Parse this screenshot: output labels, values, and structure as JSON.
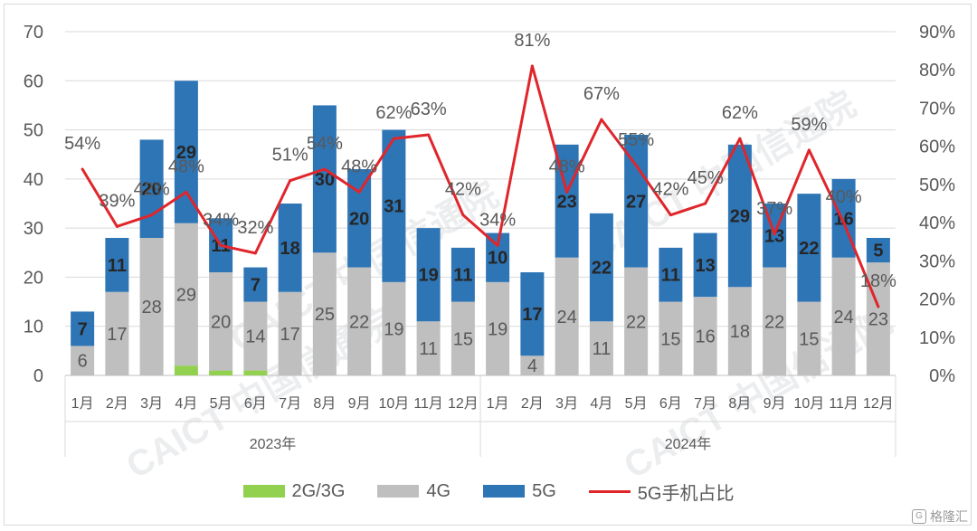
{
  "chart_data": {
    "type": "bar",
    "stacked": true,
    "categories": [
      "1月",
      "2月",
      "3月",
      "4月",
      "5月",
      "6月",
      "7月",
      "8月",
      "9月",
      "10月",
      "11月",
      "12月",
      "1月",
      "2月",
      "3月",
      "4月",
      "5月",
      "6月",
      "7月",
      "8月",
      "9月",
      "10月",
      "11月",
      "12月"
    ],
    "groups": [
      {
        "label": "2023年",
        "count": 12
      },
      {
        "label": "2024年",
        "count": 12
      }
    ],
    "series": [
      {
        "name": "2G/3G",
        "color": "#92d050",
        "values": [
          0,
          0,
          0,
          2,
          1,
          1,
          0,
          0,
          0,
          0,
          0,
          0,
          0,
          0,
          0,
          0,
          0,
          0,
          0,
          0,
          0,
          0,
          0,
          0
        ]
      },
      {
        "name": "4G",
        "color": "#bfbfbf",
        "values": [
          6,
          17,
          28,
          29,
          20,
          14,
          17,
          25,
          22,
          19,
          11,
          15,
          19,
          4,
          24,
          11,
          22,
          15,
          16,
          18,
          22,
          15,
          24,
          23
        ]
      },
      {
        "name": "5G",
        "color": "#2e75b6",
        "values": [
          7,
          11,
          20,
          29,
          11,
          7,
          18,
          30,
          20,
          31,
          19,
          11,
          10,
          17,
          23,
          22,
          27,
          11,
          13,
          29,
          13,
          22,
          16,
          5
        ]
      }
    ],
    "line": {
      "name": "5G手机占比",
      "color": "#e0252b",
      "values": [
        54,
        39,
        42,
        48,
        34,
        32,
        51,
        54,
        48,
        62,
        63,
        42,
        34,
        81,
        48,
        67,
        55,
        42,
        45,
        62,
        37,
        59,
        40,
        18
      ],
      "labels": [
        "54%",
        "39%",
        "42%",
        "48%",
        "34%",
        "32%",
        "51%",
        "54%",
        "48%",
        "62%",
        "63%",
        "42%",
        "34%",
        "81%",
        "48%",
        "67%",
        "55%",
        "42%",
        "45%",
        "62%",
        "37%",
        "59%",
        "40%",
        "18%"
      ]
    },
    "yaxis_left": {
      "range": [
        0,
        70
      ],
      "ticks": [
        "0",
        "10",
        "20",
        "30",
        "40",
        "50",
        "60",
        "70"
      ]
    },
    "yaxis_right": {
      "range": [
        0,
        90
      ],
      "ticks": [
        "0%",
        "10%",
        "20%",
        "30%",
        "40%",
        "50%",
        "60%",
        "70%",
        "80%",
        "90%"
      ]
    },
    "grid": true,
    "legend_position": "bottom"
  },
  "legend": [
    {
      "label": "2G/3G",
      "color": "#92d050",
      "kind": "box"
    },
    {
      "label": "4G",
      "color": "#bfbfbf",
      "kind": "box"
    },
    {
      "label": "5G",
      "color": "#2e75b6",
      "kind": "box"
    },
    {
      "label": "5G手机占比",
      "color": "#e0252b",
      "kind": "line"
    }
  ],
  "watermark": [
    "CAICT 中国信通院",
    "CAICT 中国信通院",
    "CAICT 中国信通院",
    "CAICT 中国信通院"
  ],
  "brand": {
    "label": "格隆汇",
    "icon": "G"
  }
}
